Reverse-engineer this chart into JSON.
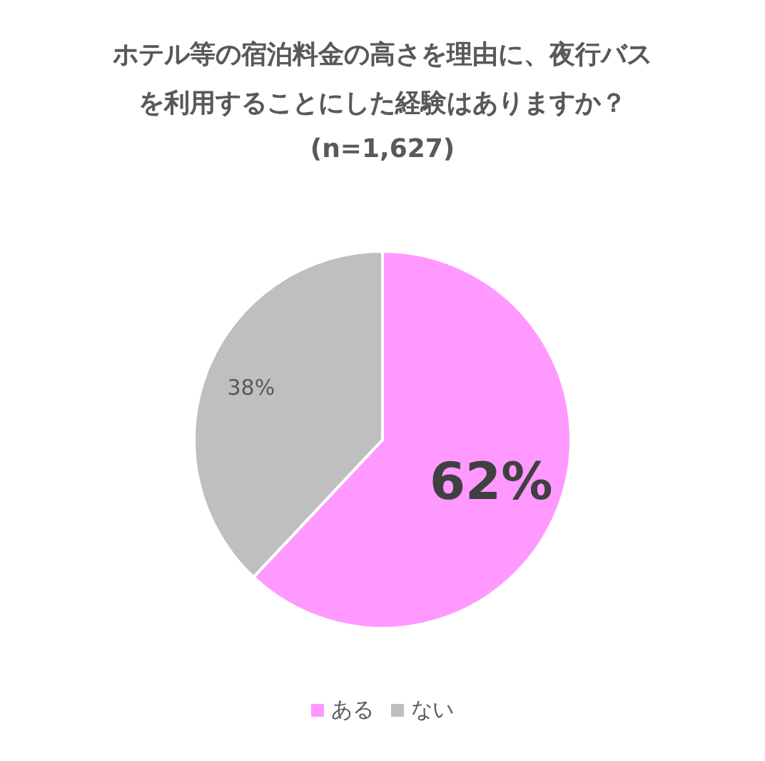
{
  "chart_data": {
    "type": "pie",
    "title": "ホテル等の宿泊料金の高さを理由に、夜行バスを利用することにした経験はありますか？",
    "subtitle": "(n=1,627)",
    "categories": [
      "ある",
      "ない"
    ],
    "values": [
      62,
      38
    ],
    "colors": [
      "#ff99ff",
      "#bfbfbf"
    ],
    "value_labels": [
      "62%",
      "38%"
    ],
    "legend": "bottom"
  }
}
